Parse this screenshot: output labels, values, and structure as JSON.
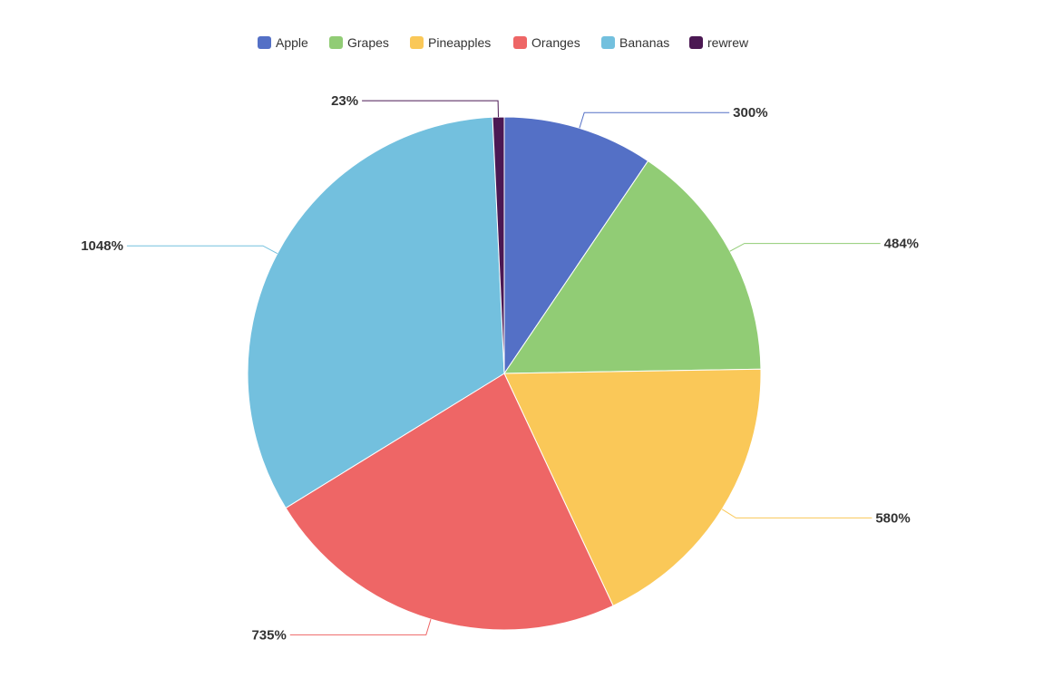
{
  "chart_data": {
    "type": "pie",
    "title": "",
    "legend_position": "top-center",
    "series": [
      {
        "name": "Apple",
        "value": 300,
        "label": "300%",
        "color": "#5470c6"
      },
      {
        "name": "Grapes",
        "value": 484,
        "label": "484%",
        "color": "#91cc75"
      },
      {
        "name": "Pineapples",
        "value": 580,
        "label": "580%",
        "color": "#fac858"
      },
      {
        "name": "Oranges",
        "value": 735,
        "label": "735%",
        "color": "#ee6666"
      },
      {
        "name": "Bananas",
        "value": 1048,
        "label": "1048%",
        "color": "#73c0de"
      },
      {
        "name": "rewrew",
        "value": 23,
        "label": "23%",
        "color": "#4b1853"
      }
    ]
  }
}
